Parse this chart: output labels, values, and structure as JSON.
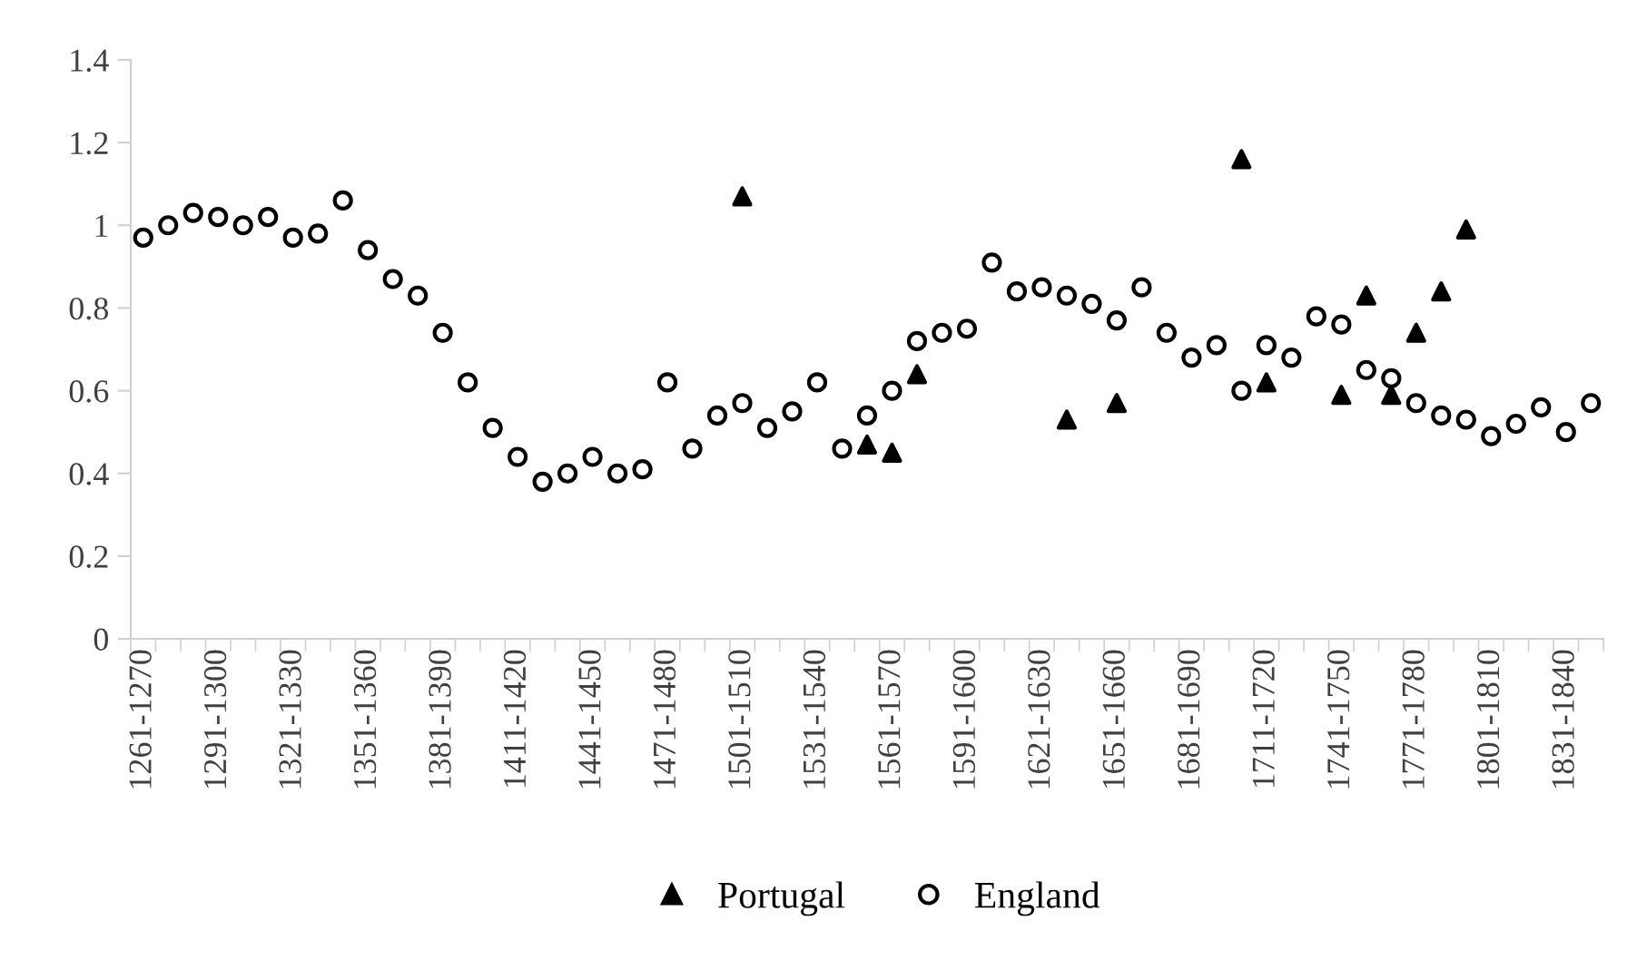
{
  "chart_data": {
    "type": "scatter",
    "categories": [
      "1261-1270",
      null,
      null,
      "1291-1300",
      null,
      null,
      "1321-1330",
      null,
      null,
      "1351-1360",
      null,
      null,
      "1381-1390",
      null,
      null,
      "1411-1420",
      null,
      null,
      "1441-1450",
      null,
      null,
      "1471-1480",
      null,
      null,
      "1501-1510",
      null,
      null,
      "1531-1540",
      null,
      null,
      "1561-1570",
      null,
      null,
      "1591-1600",
      null,
      null,
      "1621-1630",
      null,
      null,
      "1651-1660",
      null,
      null,
      "1681-1690",
      null,
      null,
      "1711-1720",
      null,
      null,
      "1741-1750",
      null,
      null,
      "1771-1780",
      null,
      null,
      "1801-1810",
      null,
      null,
      "1831-1840",
      null
    ],
    "series": [
      {
        "name": "Portugal",
        "color": "#000000",
        "marker": "triangle",
        "values": [
          null,
          null,
          null,
          null,
          null,
          null,
          null,
          null,
          null,
          null,
          null,
          null,
          null,
          null,
          null,
          null,
          null,
          null,
          null,
          null,
          null,
          null,
          null,
          null,
          1.07,
          null,
          null,
          null,
          null,
          0.47,
          0.45,
          0.64,
          null,
          null,
          null,
          null,
          null,
          0.53,
          null,
          0.57,
          null,
          null,
          null,
          null,
          1.16,
          0.62,
          null,
          null,
          0.59,
          0.83,
          0.59,
          0.74,
          0.84,
          0.99,
          null,
          null,
          null,
          null,
          null
        ]
      },
      {
        "name": "England",
        "color": "#000000",
        "marker": "circle",
        "values": [
          0.97,
          1.0,
          1.03,
          1.02,
          1.0,
          1.02,
          0.97,
          0.98,
          1.06,
          0.94,
          0.87,
          0.83,
          0.74,
          0.62,
          0.51,
          0.44,
          0.38,
          0.4,
          0.44,
          0.4,
          0.41,
          0.62,
          0.46,
          0.54,
          0.57,
          0.51,
          0.55,
          0.62,
          0.46,
          0.54,
          0.6,
          0.72,
          0.74,
          0.75,
          0.91,
          0.84,
          0.85,
          0.83,
          0.81,
          0.77,
          0.85,
          0.74,
          0.68,
          0.71,
          0.6,
          0.71,
          0.68,
          0.78,
          0.76,
          0.65,
          0.63,
          0.57,
          0.54,
          0.53,
          0.49,
          0.52,
          0.56,
          0.5,
          0.57
        ]
      }
    ],
    "ylim": [
      0,
      1.4
    ],
    "yticks": [
      0,
      0.2,
      0.4,
      0.6,
      0.8,
      1,
      1.2,
      1.4
    ],
    "grid": false,
    "legend": "bottom"
  }
}
